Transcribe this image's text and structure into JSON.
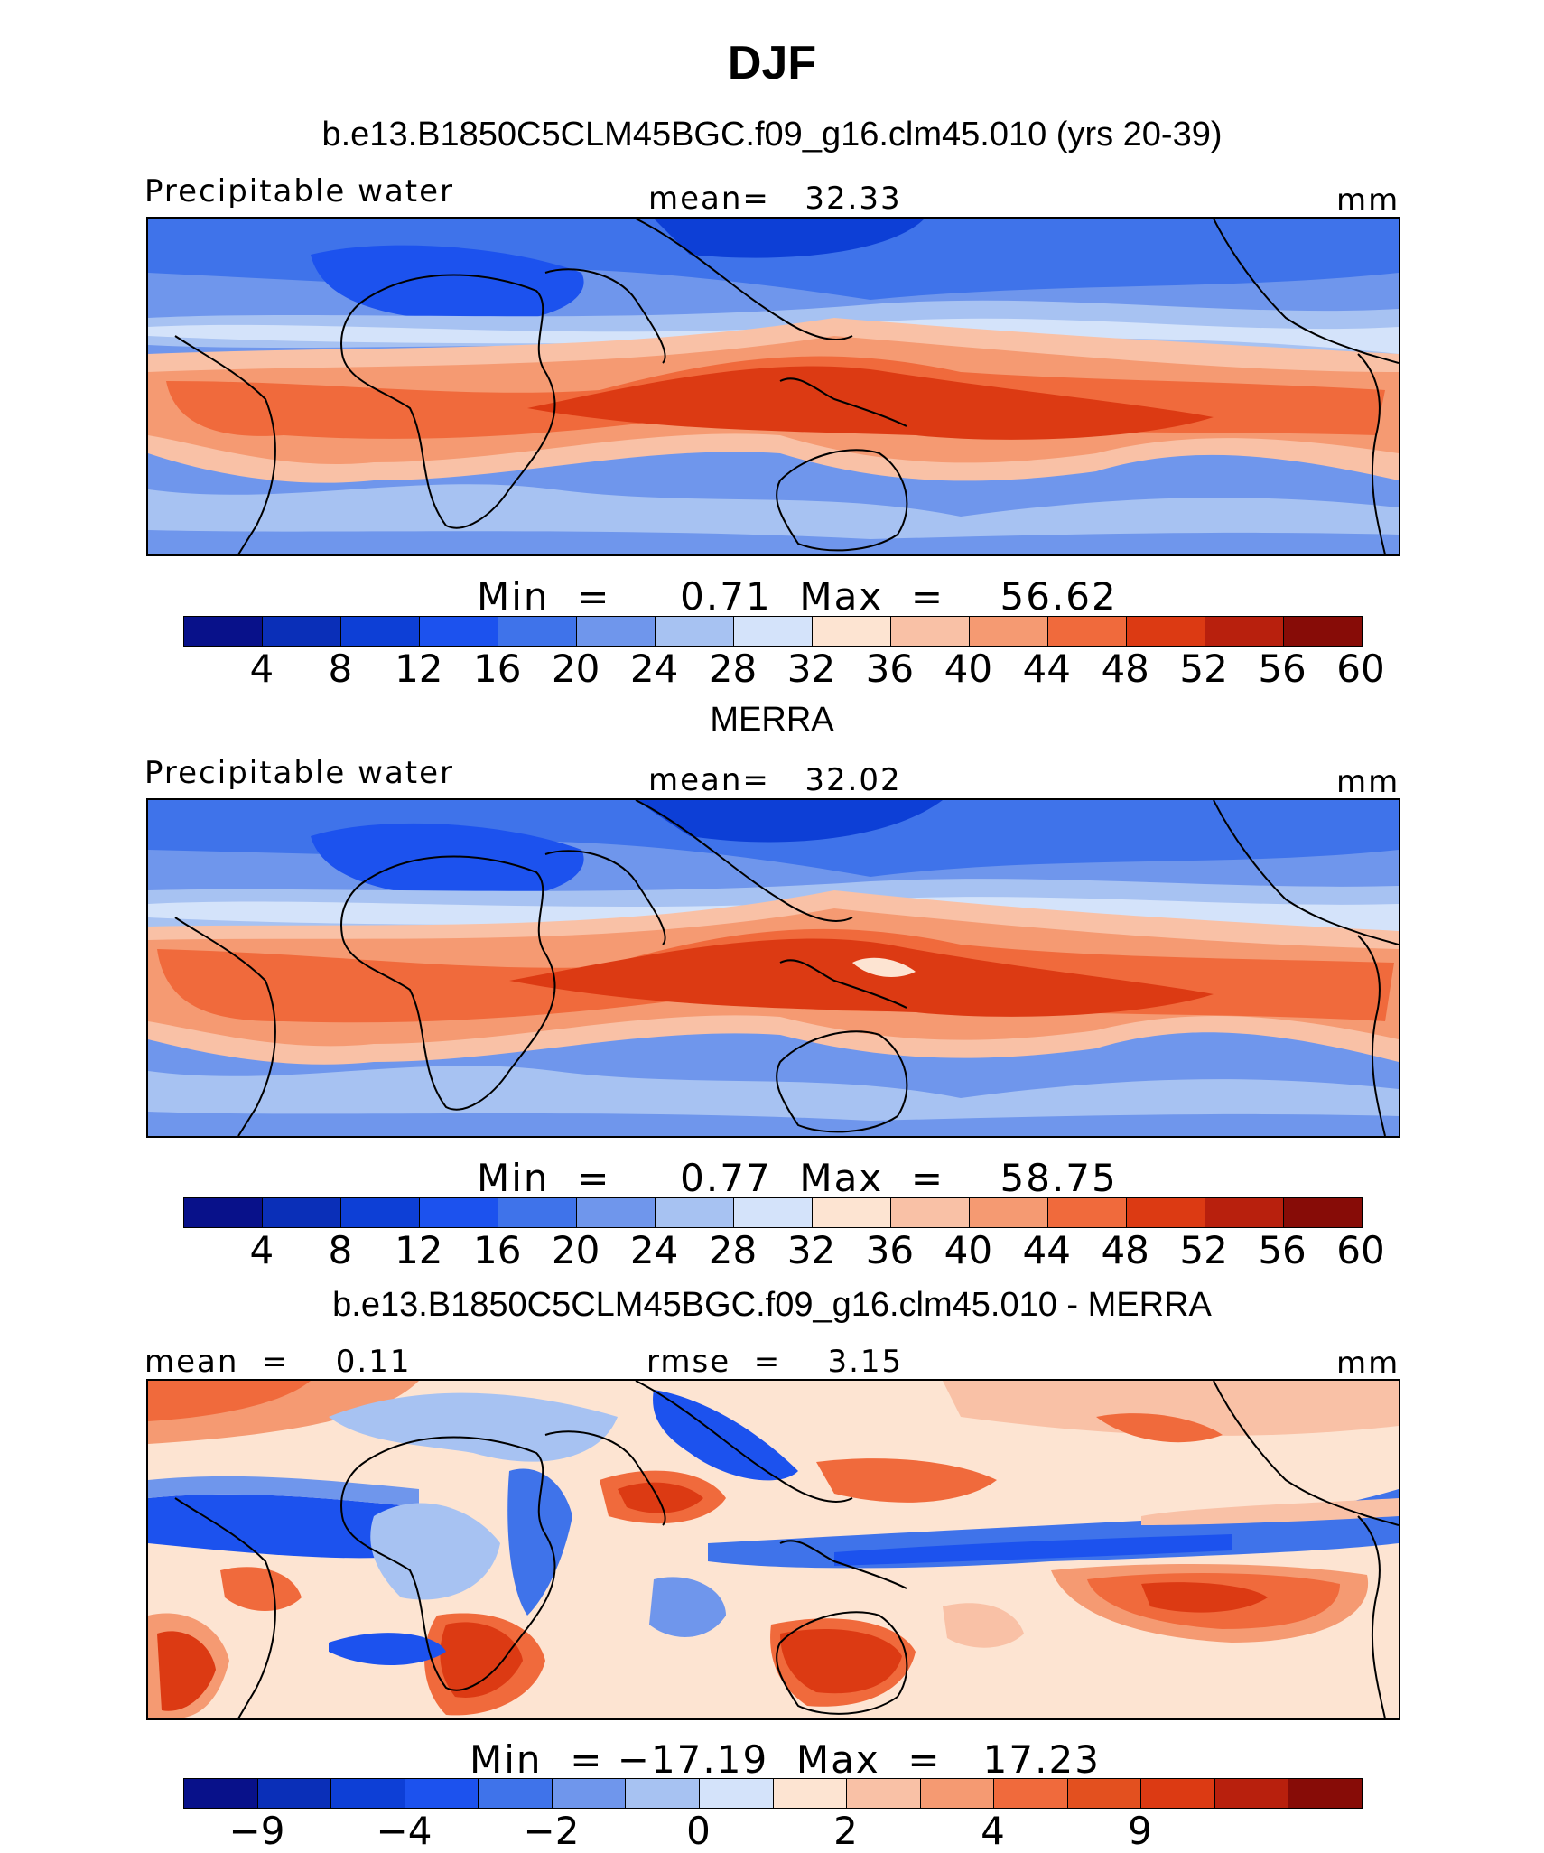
{
  "page_title": "DJF",
  "panel1": {
    "title": "b.e13.B1850C5CLM45BGC.f09_g16.clm45.010 (yrs 20-39)",
    "left_label": "Precipitable water",
    "center_label": "mean=   32.33",
    "units": "mm",
    "minmax": "Min  =     0.71  Max  =    56.62",
    "ticks": [
      "4",
      "8",
      "12",
      "16",
      "20",
      "24",
      "28",
      "32",
      "36",
      "40",
      "44",
      "48",
      "52",
      "56",
      "60"
    ]
  },
  "panel2": {
    "title": "MERRA",
    "left_label": "Precipitable water",
    "center_label": "mean=   32.02",
    "units": "mm",
    "minmax": "Min  =     0.77  Max  =    58.75",
    "ticks": [
      "4",
      "8",
      "12",
      "16",
      "20",
      "24",
      "28",
      "32",
      "36",
      "40",
      "44",
      "48",
      "52",
      "56",
      "60"
    ]
  },
  "panel3": {
    "title": "b.e13.B1850C5CLM45BGC.f09_g16.clm45.010 - MERRA",
    "left_label": "mean  =    0.11",
    "center_label": "rmse  =    3.15",
    "units": "mm",
    "minmax": "Min  = −17.19  Max  =   17.23",
    "ticks": [
      "−9",
      "−4",
      "−2",
      "0",
      "2",
      "4",
      "9"
    ]
  },
  "colors": {
    "palette": [
      "#08118a",
      "#0a2fb8",
      "#0d3fd6",
      "#1c52ee",
      "#3f73ea",
      "#6f96ec",
      "#a7c2f2",
      "#d4e3fa",
      "#fde4d2",
      "#f9c1a6",
      "#f59a72",
      "#f06a3c",
      "#dc3a13",
      "#b8200d",
      "#870c07"
    ]
  }
}
